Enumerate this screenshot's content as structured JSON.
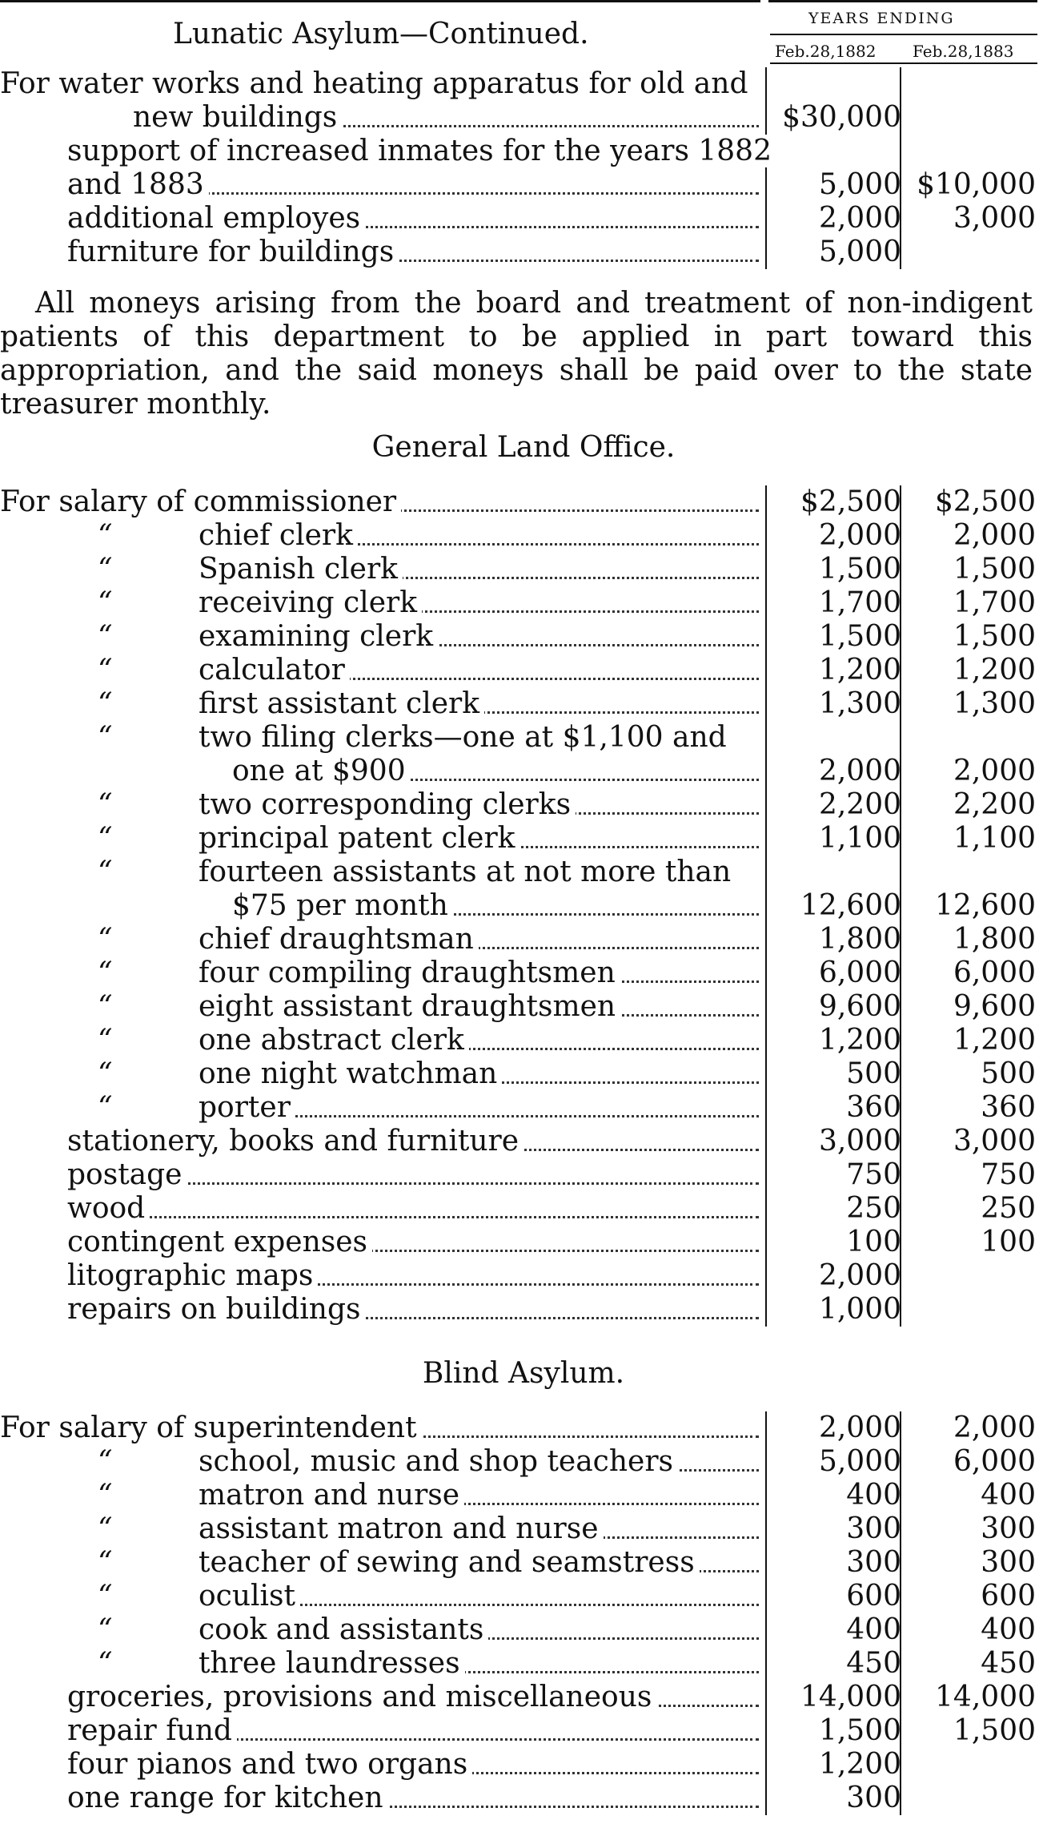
{
  "header": {
    "section_title": "Lunatic Asylum—Continued.",
    "years_label": "YEARS ENDING",
    "col1": "Feb.28,1882",
    "col2": "Feb.28,1883"
  },
  "lunatic": [
    {
      "l": "For water works and heating apparatus for old and",
      "nodots": true
    },
    {
      "l": "new buildings",
      "v1": "$30,000",
      "v2": ""
    },
    {
      "l": "support of increased inmates for the years 1882",
      "nodots": true
    },
    {
      "l": "and 1883",
      "v1": "5,000",
      "v2": "$10,000"
    },
    {
      "l": "additional employes",
      "v1": "2,000",
      "v2": "3,000"
    },
    {
      "l": "furniture for buildings",
      "v1": "5,000",
      "v2": ""
    }
  ],
  "note": "All moneys arising from the board and treatment of non-indigent patients of this department to be applied in part toward this appropriation, and the said moneys shall be paid over to the state treasurer monthly.",
  "land_office": {
    "title": "General Land Office.",
    "rows": [
      {
        "l": "For salary of commissioner",
        "v1": "$2,500",
        "v2": "$2,500"
      },
      {
        "d": "“",
        "l": "chief clerk",
        "v1": "2,000",
        "v2": "2,000"
      },
      {
        "d": "“",
        "l": "Spanish clerk",
        "v1": "1,500",
        "v2": "1,500"
      },
      {
        "d": "“",
        "l": "receiving clerk",
        "v1": "1,700",
        "v2": "1,700"
      },
      {
        "d": "“",
        "l": "examining clerk",
        "v1": "1,500",
        "v2": "1,500"
      },
      {
        "d": "“",
        "l": "calculator",
        "v1": "1,200",
        "v2": "1,200"
      },
      {
        "d": "“",
        "l": "first assistant clerk",
        "v1": "1,300",
        "v2": "1,300"
      },
      {
        "d": "“",
        "l": "two filing clerks—one at $1,100 and",
        "nodots": true
      },
      {
        "l": "one at $900",
        "v1": "2,000",
        "v2": "2,000"
      },
      {
        "d": "“",
        "l": "two corresponding clerks",
        "v1": "2,200",
        "v2": "2,200"
      },
      {
        "d": "“",
        "l": "principal patent clerk",
        "v1": "1,100",
        "v2": "1,100"
      },
      {
        "d": "“",
        "l": "fourteen assistants at not more than",
        "nodots": true
      },
      {
        "l": "$75 per month",
        "v1": "12,600",
        "v2": "12,600"
      },
      {
        "d": "“",
        "l": "chief draughtsman",
        "v1": "1,800",
        "v2": "1,800"
      },
      {
        "d": "“",
        "l": "four compiling draughtsmen",
        "v1": "6,000",
        "v2": "6,000"
      },
      {
        "d": "“",
        "l": "eight assistant draughtsmen",
        "v1": "9,600",
        "v2": "9,600"
      },
      {
        "d": "“",
        "l": "one abstract clerk",
        "v1": "1,200",
        "v2": "1,200"
      },
      {
        "d": "“",
        "l": "one night watchman",
        "v1": "500",
        "v2": "500"
      },
      {
        "d": "“",
        "l": "porter",
        "v1": "360",
        "v2": "360"
      },
      {
        "l": "stationery, books and furniture",
        "v1": "3,000",
        "v2": "3,000"
      },
      {
        "l": "postage",
        "v1": "750",
        "v2": "750"
      },
      {
        "l": "wood",
        "v1": "250",
        "v2": "250"
      },
      {
        "l": "contingent expenses",
        "v1": "100",
        "v2": "100"
      },
      {
        "l": "litographic maps",
        "v1": "2,000",
        "v2": ""
      },
      {
        "l": "repairs on buildings",
        "v1": "1,000",
        "v2": ""
      }
    ]
  },
  "blind": {
    "title": "Blind Asylum.",
    "rows": [
      {
        "l": "For salary of superintendent",
        "v1": "2,000",
        "v2": "2,000"
      },
      {
        "d": "“",
        "l": "school, music and shop teachers",
        "v1": "5,000",
        "v2": "6,000"
      },
      {
        "d": "“",
        "l": "matron and nurse",
        "v1": "400",
        "v2": "400"
      },
      {
        "d": "“",
        "l": "assistant matron and nurse",
        "v1": "300",
        "v2": "300"
      },
      {
        "d": "“",
        "l": "teacher of sewing and seamstress",
        "v1": "300",
        "v2": "300"
      },
      {
        "d": "“",
        "l": "oculist",
        "v1": "600",
        "v2": "600"
      },
      {
        "d": "“",
        "l": "cook and assistants",
        "v1": "400",
        "v2": "400"
      },
      {
        "d": "“",
        "l": "three laundresses",
        "v1": "450",
        "v2": "450"
      },
      {
        "l": "groceries, provisions and miscellaneous",
        "v1": "14,000",
        "v2": "14,000"
      },
      {
        "l": "repair fund",
        "v1": "1,500",
        "v2": "1,500"
      },
      {
        "l": "four pianos and two organs",
        "v1": "1,200",
        "v2": ""
      },
      {
        "l": "one range for kitchen",
        "v1": "300",
        "v2": ""
      }
    ]
  }
}
